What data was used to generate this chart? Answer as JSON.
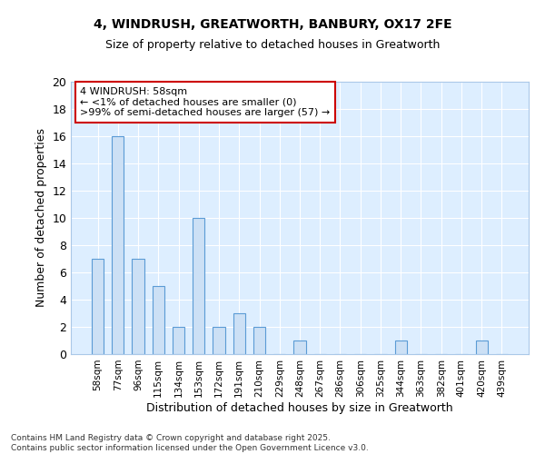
{
  "title1": "4, WINDRUSH, GREATWORTH, BANBURY, OX17 2FE",
  "title2": "Size of property relative to detached houses in Greatworth",
  "xlabel": "Distribution of detached houses by size in Greatworth",
  "ylabel": "Number of detached properties",
  "categories": [
    "58sqm",
    "77sqm",
    "96sqm",
    "115sqm",
    "134sqm",
    "153sqm",
    "172sqm",
    "191sqm",
    "210sqm",
    "229sqm",
    "248sqm",
    "267sqm",
    "286sqm",
    "306sqm",
    "325sqm",
    "344sqm",
    "363sqm",
    "382sqm",
    "401sqm",
    "420sqm",
    "439sqm"
  ],
  "values": [
    7,
    16,
    7,
    5,
    2,
    10,
    2,
    3,
    2,
    0,
    1,
    0,
    0,
    0,
    0,
    1,
    0,
    0,
    0,
    1,
    0
  ],
  "bar_color": "#cce0f5",
  "bar_edge_color": "#5b9bd5",
  "annotation_text": "4 WINDRUSH: 58sqm\n← <1% of detached houses are smaller (0)\n>99% of semi-detached houses are larger (57) →",
  "annotation_box_color": "#ffffff",
  "annotation_box_edge_color": "#cc0000",
  "ylim": [
    0,
    20
  ],
  "yticks": [
    0,
    2,
    4,
    6,
    8,
    10,
    12,
    14,
    16,
    18,
    20
  ],
  "axes_bg_color": "#ddeeff",
  "figure_bg_color": "#ffffff",
  "grid_color": "#ffffff",
  "footnote": "Contains HM Land Registry data © Crown copyright and database right 2025.\nContains public sector information licensed under the Open Government Licence v3.0."
}
